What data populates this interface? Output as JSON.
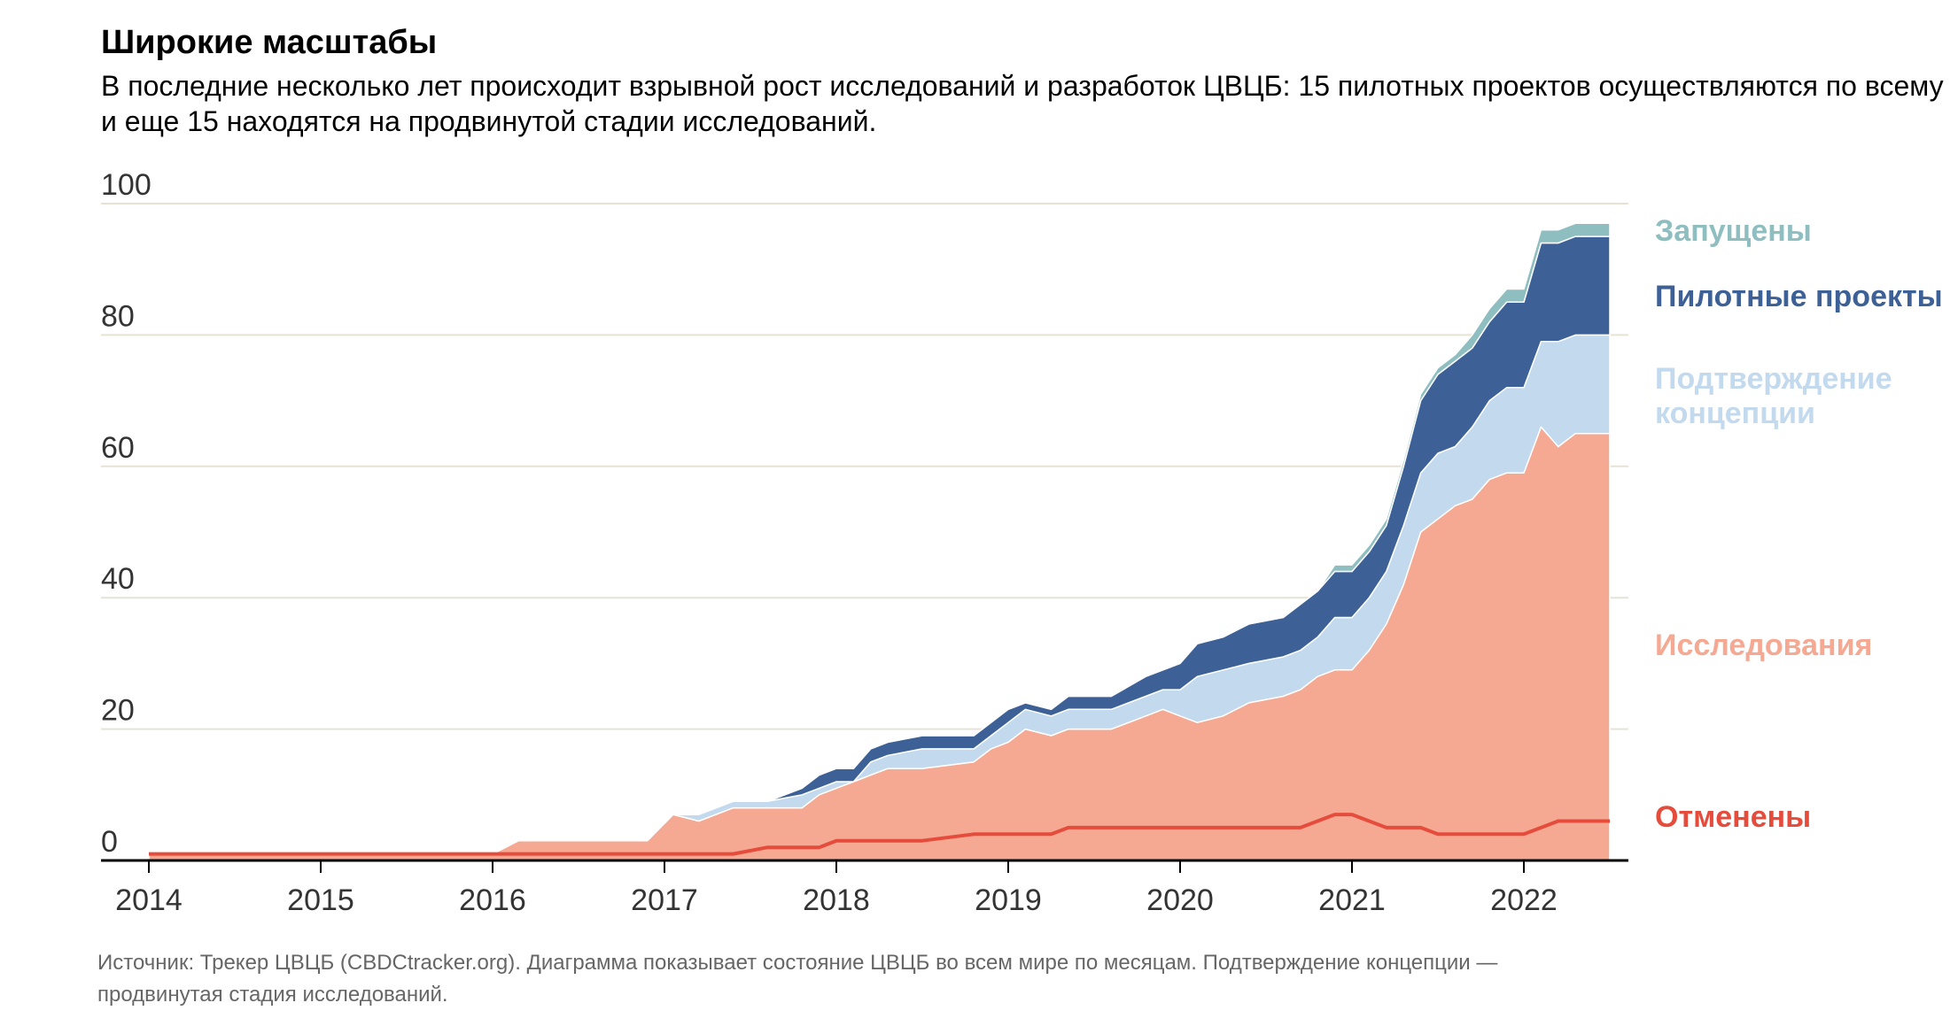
{
  "chart_data": {
    "type": "area",
    "title": "Широкие масштабы",
    "subtitle": [
      "В последние несколько лет происходит взрывной рост исследований и разработок ЦВЦБ: 15 пилотных проектов осуществляются по всему миру",
      "и еще 15 находятся на продвинутой стадии исследований."
    ],
    "source": [
      "Источник: Трекер ЦВЦБ (CBDCtracker.org). Диаграмма показывает состояние ЦВЦБ во всем мире по месяцам. Подтверждение концепции —",
      "продвинутая стадия исследований."
    ],
    "xlim": [
      2014,
      2022.6
    ],
    "ylim": [
      0,
      100
    ],
    "y_ticks": [
      0,
      20,
      40,
      60,
      80,
      100
    ],
    "x_ticks": [
      2014,
      2015,
      2016,
      2017,
      2018,
      2019,
      2020,
      2021,
      2022
    ],
    "x_tick_labels": [
      "2014",
      "2015",
      "2016",
      "2017",
      "2018",
      "2019",
      "2020",
      "2021",
      "2022"
    ],
    "grid": true,
    "x": [
      2014.0,
      2016.0,
      2016.15,
      2016.9,
      2017.05,
      2017.2,
      2017.4,
      2017.6,
      2017.8,
      2017.9,
      2018.0,
      2018.1,
      2018.2,
      2018.3,
      2018.5,
      2018.8,
      2018.9,
      2019.0,
      2019.1,
      2019.25,
      2019.35,
      2019.6,
      2019.8,
      2019.9,
      2020.0,
      2020.1,
      2020.25,
      2020.4,
      2020.6,
      2020.7,
      2020.8,
      2020.9,
      2021.0,
      2021.1,
      2021.2,
      2021.3,
      2021.4,
      2021.5,
      2021.6,
      2021.7,
      2021.8,
      2021.9,
      2022.0,
      2022.1,
      2022.2,
      2022.3,
      2022.4,
      2022.5
    ],
    "series": [
      {
        "name": "Отменены",
        "color": "#e64c3c",
        "kind": "line",
        "values": [
          1,
          1,
          1,
          1,
          1,
          1,
          1,
          2,
          2,
          2,
          3,
          3,
          3,
          3,
          3,
          4,
          4,
          4,
          4,
          4,
          5,
          5,
          5,
          5,
          5,
          5,
          5,
          5,
          5,
          5,
          6,
          7,
          7,
          6,
          5,
          5,
          5,
          4,
          4,
          4,
          4,
          4,
          4,
          5,
          6,
          6,
          6,
          6
        ]
      },
      {
        "name": "Исследования",
        "color": "#f5a892",
        "values": [
          1,
          1,
          3,
          3,
          7,
          6,
          8,
          8,
          8,
          10,
          11,
          12,
          13,
          14,
          14,
          15,
          17,
          18,
          20,
          19,
          20,
          20,
          22,
          23,
          22,
          21,
          22,
          24,
          25,
          26,
          28,
          29,
          29,
          32,
          36,
          42,
          50,
          52,
          54,
          55,
          58,
          59,
          59,
          66,
          63,
          65,
          65,
          65
        ]
      },
      {
        "name": "Подтверждение концепции",
        "color": "#c2d9ee",
        "values": [
          0,
          0,
          0,
          0,
          0,
          1,
          1,
          1,
          2,
          1,
          1,
          0,
          2,
          2,
          3,
          2,
          2,
          3,
          3,
          3,
          3,
          3,
          3,
          3,
          4,
          7,
          7,
          6,
          6,
          6,
          6,
          8,
          8,
          8,
          8,
          9,
          9,
          10,
          9,
          11,
          12,
          13,
          13,
          13,
          16,
          15,
          15,
          15
        ]
      },
      {
        "name": "Пилотные проекты",
        "color": "#3d6196",
        "values": [
          0,
          0,
          0,
          0,
          0,
          0,
          0,
          0,
          1,
          2,
          2,
          2,
          2,
          2,
          2,
          2,
          2,
          2,
          1,
          1,
          2,
          2,
          3,
          3,
          4,
          5,
          5,
          6,
          6,
          7,
          7,
          7,
          7,
          7,
          7,
          9,
          11,
          12,
          13,
          12,
          12,
          13,
          13,
          15,
          15,
          15,
          15,
          15
        ]
      },
      {
        "name": "Запущены",
        "color": "#8fbec0",
        "values": [
          0,
          0,
          0,
          0,
          0,
          0,
          0,
          0,
          0,
          0,
          0,
          0,
          0,
          0,
          0,
          0,
          0,
          0,
          0,
          0,
          0,
          0,
          0,
          0,
          0,
          0,
          0,
          0,
          0,
          0,
          0,
          1,
          1,
          1,
          1,
          1,
          1,
          1,
          1,
          2,
          2,
          2,
          2,
          2,
          2,
          2,
          2,
          2
        ]
      }
    ],
    "legend": [
      {
        "label": "Запущены",
        "color": "#8fbec0"
      },
      {
        "label": "Пилотные проекты",
        "color": "#3d6196"
      },
      {
        "label": "Подтверждение",
        "label2": "концепции",
        "color": "#c2d9ee"
      },
      {
        "label": "Исследования",
        "color": "#f5a892"
      },
      {
        "label": "Отменены",
        "color": "#e64c3c"
      }
    ]
  }
}
